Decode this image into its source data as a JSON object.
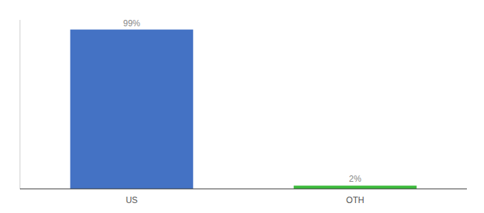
{
  "chart_data": {
    "type": "bar",
    "categories": [
      "US",
      "OTH"
    ],
    "values": [
      99,
      2
    ],
    "value_labels": [
      "99%",
      "2%"
    ],
    "colors": [
      "#4472c4",
      "#3dbb3d"
    ],
    "ylim": [
      0,
      105
    ],
    "data_labels": true,
    "tick_labels": "x",
    "grid": false
  }
}
